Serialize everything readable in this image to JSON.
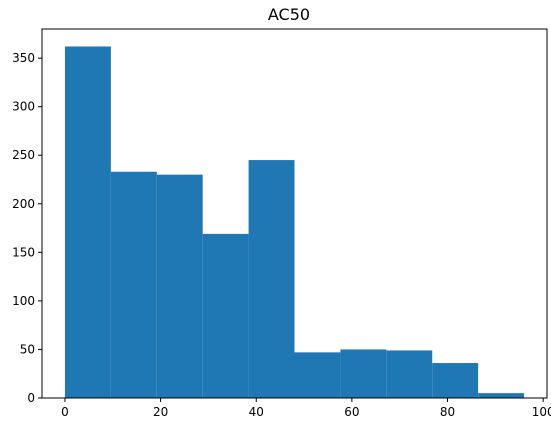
{
  "chart_data": {
    "type": "bar",
    "title": "AC50",
    "xlabel": "",
    "ylabel": "",
    "bin_edges": [
      0.0,
      9.6,
      19.2,
      28.8,
      38.4,
      48.0,
      57.6,
      67.2,
      76.8,
      86.4,
      96.0
    ],
    "values": [
      362,
      233,
      230,
      169,
      245,
      47,
      50,
      49,
      36,
      5
    ],
    "xlim": [
      -4.8,
      100.8
    ],
    "ylim": [
      0,
      380
    ],
    "x_ticks": [
      0,
      20,
      40,
      60,
      80,
      100
    ],
    "y_ticks": [
      0,
      50,
      100,
      150,
      200,
      250,
      300,
      350
    ],
    "bar_color": "#1f77b4",
    "grid": false,
    "legend": "none"
  }
}
